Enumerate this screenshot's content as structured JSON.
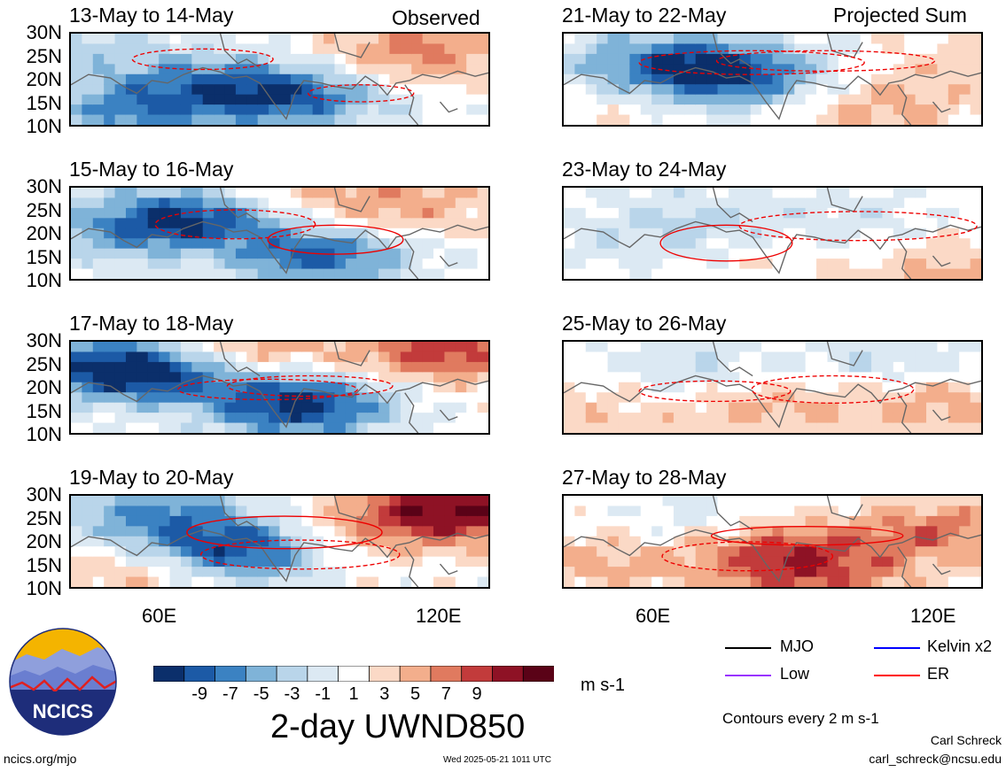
{
  "header": {
    "observed_label": "Observed",
    "projected_label": "Projected Sum"
  },
  "panels_left": [
    {
      "title": "13-May to 14-May"
    },
    {
      "title": "15-May to 16-May"
    },
    {
      "title": "17-May to 18-May"
    },
    {
      "title": "19-May to 20-May"
    }
  ],
  "panels_right": [
    {
      "title": "21-May to 22-May"
    },
    {
      "title": "23-May to 24-May"
    },
    {
      "title": "25-May to 26-May"
    },
    {
      "title": "27-May to 28-May"
    }
  ],
  "lat_ticks": [
    "30N",
    "25N",
    "20N",
    "15N",
    "10N"
  ],
  "lon_ticks": [
    "60E",
    "120E"
  ],
  "colorbar": {
    "ticks": [
      "-9",
      "-7",
      "-5",
      "-3",
      "-1",
      "1",
      "3",
      "5",
      "7",
      "9"
    ],
    "colors": [
      "#0b2f6b",
      "#1c5aa6",
      "#3b82c2",
      "#7fb3d8",
      "#b9d5ea",
      "#dce9f3",
      "#ffffff",
      "#fbd9c6",
      "#f3ae8c",
      "#e07a5f",
      "#c23b3b",
      "#8e1225",
      "#5a0217"
    ],
    "units": "m s-1",
    "title": "2-day UWND850"
  },
  "legend": {
    "items": [
      {
        "label": "MJO",
        "color": "#000000"
      },
      {
        "label": "Kelvin x2",
        "color": "#0000ff"
      },
      {
        "label": "Low",
        "color": "#9933ff"
      },
      {
        "label": "ER",
        "color": "#ff0000"
      }
    ],
    "contour_note": "Contours every 2 m s-1"
  },
  "footer": {
    "logo_text": "NCICS",
    "url": "ncics.org/mjo",
    "timestamp": "Wed 2025-05-21 1011 UTC",
    "author": "Carl Schreck",
    "email": "carl_schreck@ncsu.edu"
  },
  "chart_data": [
    {
      "type": "heatmap",
      "title": "13-May to 14-May",
      "ylabel": "",
      "xlabel": "",
      "ylim": [
        "10N",
        "30N"
      ],
      "x_ticks": [
        "60E",
        "120E"
      ],
      "y_ticks": [
        "30N",
        "25N",
        "20N",
        "15N",
        "10N"
      ],
      "units": "m s-1"
    },
    {
      "type": "heatmap",
      "title": "15-May to 16-May",
      "ylim": [
        "10N",
        "30N"
      ],
      "units": "m s-1"
    },
    {
      "type": "heatmap",
      "title": "17-May to 18-May",
      "ylim": [
        "10N",
        "30N"
      ],
      "units": "m s-1"
    },
    {
      "type": "heatmap",
      "title": "19-May to 20-May",
      "ylim": [
        "10N",
        "30N"
      ],
      "units": "m s-1"
    },
    {
      "type": "heatmap",
      "title": "21-May to 22-May",
      "ylim": [
        "10N",
        "30N"
      ],
      "units": "m s-1"
    },
    {
      "type": "heatmap",
      "title": "23-May to 24-May",
      "ylim": [
        "10N",
        "30N"
      ],
      "units": "m s-1"
    },
    {
      "type": "heatmap",
      "title": "25-May to 26-May",
      "ylim": [
        "10N",
        "30N"
      ],
      "units": "m s-1"
    },
    {
      "type": "heatmap",
      "title": "27-May to 28-May",
      "ylim": [
        "10N",
        "30N"
      ],
      "units": "m s-1"
    }
  ]
}
